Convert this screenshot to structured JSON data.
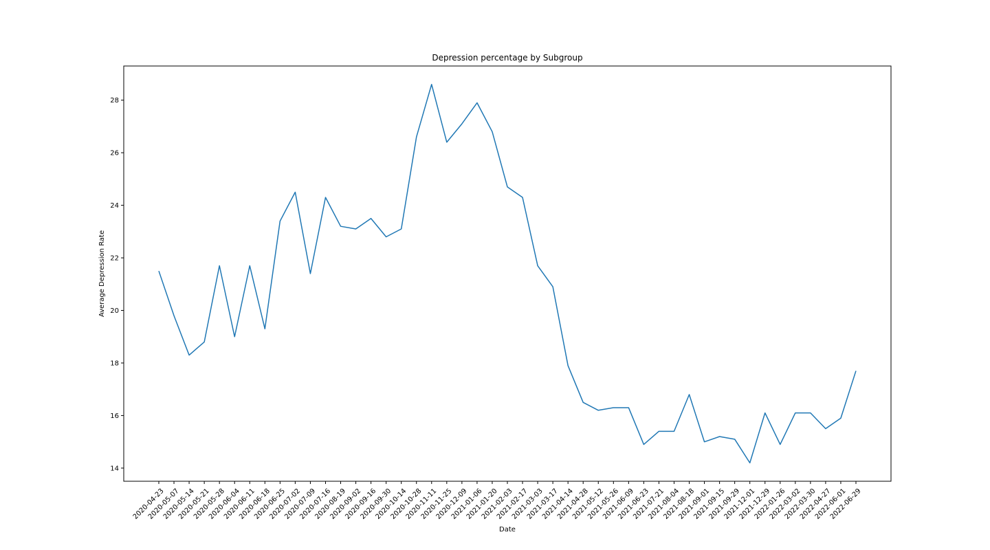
{
  "chart_data": {
    "type": "line",
    "title": "Depression percentage by Subgroup",
    "xlabel": "Date",
    "ylabel": "Average Depression Rate",
    "ylim": [
      13.5,
      29.3
    ],
    "yticks": [
      14,
      16,
      18,
      20,
      22,
      24,
      26,
      28
    ],
    "grid": false,
    "line_color": "#1f77b4",
    "x": [
      "2020-04-23",
      "2020-05-07",
      "2020-05-14",
      "2020-05-21",
      "2020-05-28",
      "2020-06-04",
      "2020-06-11",
      "2020-06-18",
      "2020-06-25",
      "2020-07-02",
      "2020-07-09",
      "2020-07-16",
      "2020-08-19",
      "2020-09-02",
      "2020-09-16",
      "2020-09-30",
      "2020-10-14",
      "2020-10-28",
      "2020-11-11",
      "2020-11-25",
      "2020-12-09",
      "2021-01-06",
      "2021-01-20",
      "2021-02-03",
      "2021-02-17",
      "2021-03-03",
      "2021-03-17",
      "2021-04-14",
      "2021-04-28",
      "2021-05-12",
      "2021-05-26",
      "2021-06-09",
      "2021-06-23",
      "2021-07-21",
      "2021-08-04",
      "2021-08-18",
      "2021-09-01",
      "2021-09-15",
      "2021-09-29",
      "2021-12-01",
      "2021-12-29",
      "2022-01-26",
      "2022-03-02",
      "2022-03-30",
      "2022-04-27",
      "2022-06-01",
      "2022-06-29"
    ],
    "values": [
      21.5,
      19.8,
      18.3,
      18.8,
      21.7,
      19.0,
      21.7,
      19.3,
      23.4,
      24.5,
      21.4,
      24.3,
      23.2,
      23.1,
      23.5,
      22.8,
      23.1,
      26.6,
      28.6,
      26.4,
      27.1,
      27.9,
      26.8,
      24.7,
      24.3,
      21.7,
      20.9,
      17.9,
      16.5,
      16.2,
      16.3,
      16.3,
      14.9,
      15.4,
      15.4,
      16.8,
      15.0,
      15.2,
      15.1,
      14.2,
      16.1,
      14.9,
      16.1,
      16.1,
      15.5,
      15.9,
      17.7
    ]
  }
}
